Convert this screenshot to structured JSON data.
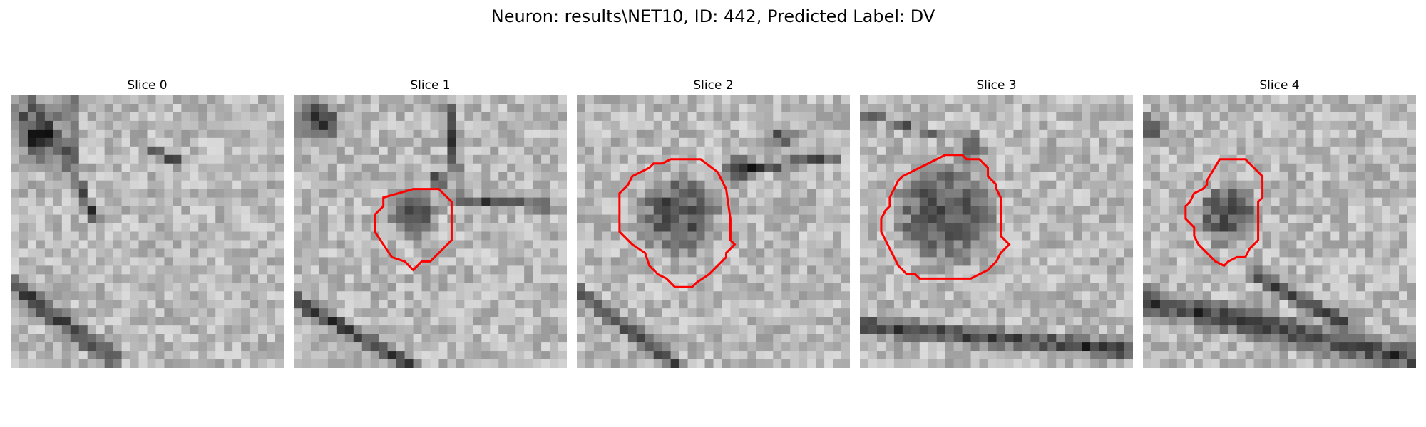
{
  "figure": {
    "suptitle": "Neuron: results\\NET10, ID: 442, Predicted Label: DV",
    "contour_color": "#ff0000",
    "slices": [
      {
        "title": "Slice 0",
        "has_contour": false,
        "contour": []
      },
      {
        "title": "Slice 1",
        "has_contour": true,
        "contour": [
          [
            14,
            11
          ],
          [
            17,
            11
          ],
          [
            18.5,
            12.5
          ],
          [
            18.5,
            17
          ],
          [
            16,
            19.5
          ],
          [
            15,
            19.5
          ],
          [
            14,
            20.5
          ],
          [
            13,
            19.5
          ],
          [
            11.5,
            19
          ],
          [
            10.5,
            17.5
          ],
          [
            9.5,
            16
          ],
          [
            9.5,
            14
          ],
          [
            10.5,
            13
          ],
          [
            10.5,
            12
          ]
        ]
      },
      {
        "title": "Slice 2",
        "has_contour": true,
        "contour": [
          [
            13,
            7.5
          ],
          [
            14.5,
            7.5
          ],
          [
            16.5,
            9
          ],
          [
            17,
            10
          ],
          [
            17.5,
            11
          ],
          [
            18,
            14.5
          ],
          [
            18,
            17
          ],
          [
            18.5,
            17.5
          ],
          [
            17.5,
            18.5
          ],
          [
            17.5,
            19
          ],
          [
            15.5,
            21
          ],
          [
            14,
            22
          ],
          [
            13.5,
            22.5
          ],
          [
            11.5,
            22.5
          ],
          [
            10.5,
            21.5
          ],
          [
            9.5,
            21
          ],
          [
            8.5,
            20
          ],
          [
            8,
            18.5
          ],
          [
            6.5,
            17.5
          ],
          [
            5,
            16
          ],
          [
            5,
            11.5
          ],
          [
            6,
            10.5
          ],
          [
            6.5,
            9.5
          ],
          [
            7.5,
            9
          ],
          [
            8.5,
            8.5
          ],
          [
            9,
            8
          ],
          [
            10,
            8
          ],
          [
            11,
            7.5
          ],
          [
            12,
            7.5
          ]
        ]
      },
      {
        "title": "Slice 3",
        "has_contour": true,
        "contour": [
          [
            10,
            7
          ],
          [
            12,
            7
          ],
          [
            12.5,
            7.5
          ],
          [
            14,
            7.5
          ],
          [
            15,
            8.5
          ],
          [
            15,
            9.5
          ],
          [
            16,
            10.5
          ],
          [
            16,
            11
          ],
          [
            16.5,
            12
          ],
          [
            16.5,
            16.5
          ],
          [
            17.5,
            17.5
          ],
          [
            16.5,
            18.5
          ],
          [
            16,
            19.5
          ],
          [
            15,
            20.5
          ],
          [
            14,
            21
          ],
          [
            13,
            21.5
          ],
          [
            7,
            21.5
          ],
          [
            6.5,
            21
          ],
          [
            5.5,
            21
          ],
          [
            4.5,
            20
          ],
          [
            4,
            19
          ],
          [
            3.5,
            18
          ],
          [
            3,
            17
          ],
          [
            2.5,
            16
          ],
          [
            2.5,
            14.5
          ],
          [
            3,
            13.5
          ],
          [
            3.5,
            13
          ],
          [
            3.5,
            12
          ],
          [
            4,
            11
          ],
          [
            4.5,
            10
          ],
          [
            5,
            9.5
          ],
          [
            6,
            9
          ],
          [
            7,
            8.5
          ],
          [
            8,
            8
          ],
          [
            9,
            7.5
          ]
        ]
      },
      {
        "title": "Slice 4",
        "has_contour": true,
        "contour": [
          [
            9,
            7.5
          ],
          [
            12,
            7.5
          ],
          [
            14,
            9.5
          ],
          [
            14,
            12
          ],
          [
            13.5,
            12.5
          ],
          [
            13.5,
            17
          ],
          [
            12.5,
            18
          ],
          [
            12,
            19
          ],
          [
            11,
            19
          ],
          [
            10,
            19.5
          ],
          [
            9.5,
            20
          ],
          [
            8.5,
            19.5
          ],
          [
            8,
            19
          ],
          [
            7.5,
            18.5
          ],
          [
            7,
            18
          ],
          [
            6.5,
            17.5
          ],
          [
            6,
            16.5
          ],
          [
            6,
            15.5
          ],
          [
            5.5,
            15
          ],
          [
            5,
            14.5
          ],
          [
            5,
            13
          ],
          [
            5.5,
            12.5
          ],
          [
            6,
            11.5
          ],
          [
            7,
            11
          ],
          [
            7.5,
            10.5
          ],
          [
            7.5,
            10
          ]
        ]
      }
    ]
  }
}
